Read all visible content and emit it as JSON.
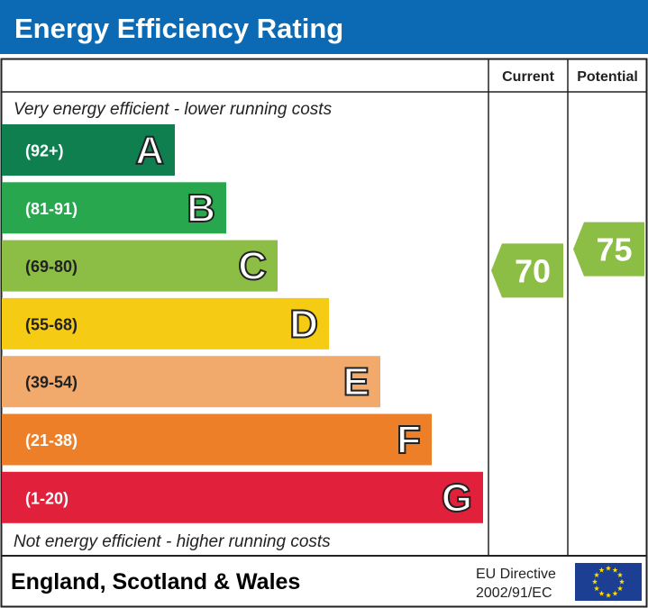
{
  "chart_data": {
    "type": "bar",
    "title": "Energy Efficiency Rating",
    "columns": {
      "current": "Current",
      "potential": "Potential"
    },
    "top_note": "Very energy efficient - lower running costs",
    "bottom_note": "Not energy efficient - higher running costs",
    "bands": [
      {
        "letter": "A",
        "range": "(92+)",
        "color": "#0f7f50"
      },
      {
        "letter": "B",
        "range": "(81-91)",
        "color": "#29a74f"
      },
      {
        "letter": "C",
        "range": "(69-80)",
        "color": "#8cbd45"
      },
      {
        "letter": "D",
        "range": "(55-68)",
        "color": "#f5cb14"
      },
      {
        "letter": "E",
        "range": "(39-54)",
        "color": "#f2aa6c"
      },
      {
        "letter": "F",
        "range": "(21-38)",
        "color": "#ec7f27"
      },
      {
        "letter": "G",
        "range": "(1-20)",
        "color": "#e1203c"
      }
    ],
    "current": {
      "value": 70,
      "band": "C",
      "color": "#8cbd45"
    },
    "potential": {
      "value": 75,
      "band": "C",
      "color": "#8cbd45"
    },
    "header_color": "#0b6ab3"
  },
  "footer": {
    "region": "England, Scotland & Wales",
    "directive_line1": "EU Directive",
    "directive_line2": "2002/91/EC",
    "flag_icon": "eu-flag-icon"
  }
}
